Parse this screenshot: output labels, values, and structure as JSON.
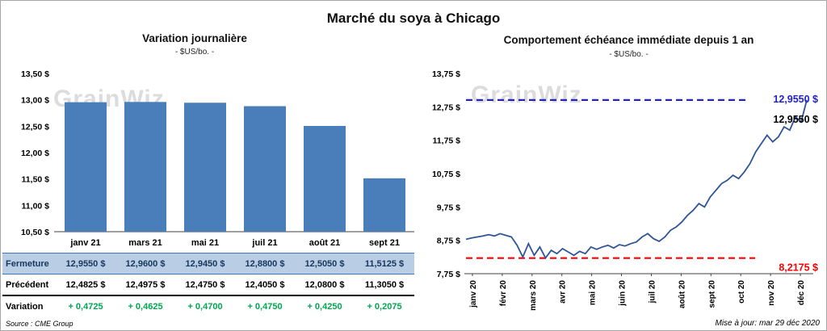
{
  "header": {
    "title": "Marché du soya à Chicago"
  },
  "watermark": "GrainWiz",
  "left_panel": {
    "title": "Variation journalière",
    "subtitle": "- $US/bo. -",
    "source": "Source : CME Group",
    "table": {
      "rows": [
        {
          "label": "Fermeture",
          "values": [
            "12,9550 $",
            "12,9600 $",
            "12,9450 $",
            "12,8800 $",
            "12,5050 $",
            "11,5125 $"
          ]
        },
        {
          "label": "Précédent",
          "values": [
            "12,4825 $",
            "12,4975 $",
            "12,4750 $",
            "12,4050 $",
            "12,0800 $",
            "11,3050 $"
          ]
        },
        {
          "label": "Variation",
          "values": [
            "+ 0,4725",
            "+ 0,4625",
            "+ 0,4700",
            "+ 0,4750",
            "+ 0,4250",
            "+ 0,2075"
          ]
        }
      ]
    }
  },
  "right_panel": {
    "title": "Comportement échéance immédiate depuis 1 an",
    "subtitle": "- $US/bo. -",
    "updated": "Mise à jour: mar 29 déc 2020"
  },
  "chart_data": [
    {
      "type": "bar",
      "title": "Variation journalière",
      "subtitle": "- $US/bo. -",
      "categories": [
        "janv 21",
        "mars 21",
        "mai 21",
        "juil 21",
        "août 21",
        "sept 21"
      ],
      "values": [
        12.955,
        12.96,
        12.945,
        12.88,
        12.505,
        11.5125
      ],
      "value_labels": [
        "12,9550 $",
        "12,9600 $",
        "12,9450 $",
        "12,8800 $",
        "12,5050 $",
        "11,5125 $"
      ],
      "ylim": [
        10.5,
        13.5
      ],
      "yticks": [
        {
          "v": 13.5,
          "label": "13,50 $"
        },
        {
          "v": 13.0,
          "label": "13,00 $"
        },
        {
          "v": 12.5,
          "label": "12,50 $"
        },
        {
          "v": 12.0,
          "label": "12,00 $"
        },
        {
          "v": 11.5,
          "label": "11,50 $"
        },
        {
          "v": 11.0,
          "label": "11,00 $"
        },
        {
          "v": 10.5,
          "label": "10,50 $"
        }
      ],
      "bar_color": "#4A7EBB",
      "grid": false,
      "legend": false
    },
    {
      "type": "line",
      "title": "Comportement échéance immédiate depuis 1 an",
      "subtitle": "- $US/bo. -",
      "x_labels": [
        "janv 20",
        "févr 20",
        "mars 20",
        "avr 20",
        "mai 20",
        "juin 20",
        "juil 20",
        "août 20",
        "sept 20",
        "oct 20",
        "nov 20",
        "déc 20"
      ],
      "ylim": [
        7.75,
        13.75
      ],
      "yticks": [
        {
          "v": 13.75,
          "label": "13,75 $"
        },
        {
          "v": 12.75,
          "label": "12,75 $"
        },
        {
          "v": 11.75,
          "label": "11,75 $"
        },
        {
          "v": 10.75,
          "label": "10,75 $"
        },
        {
          "v": 9.75,
          "label": "9,75 $"
        },
        {
          "v": 8.75,
          "label": "8,75 $"
        },
        {
          "v": 7.75,
          "label": "7,75 $"
        }
      ],
      "line_color": "#2F5597",
      "values": [
        8.78,
        8.82,
        8.85,
        8.88,
        8.92,
        8.88,
        8.95,
        8.9,
        8.85,
        8.6,
        8.25,
        8.65,
        8.3,
        8.55,
        8.22,
        8.45,
        8.35,
        8.5,
        8.4,
        8.3,
        8.42,
        8.35,
        8.55,
        8.48,
        8.55,
        8.6,
        8.52,
        8.62,
        8.58,
        8.65,
        8.7,
        8.85,
        8.95,
        8.8,
        8.72,
        8.85,
        9.05,
        9.15,
        9.3,
        9.5,
        9.65,
        9.85,
        9.75,
        10.05,
        10.25,
        10.45,
        10.55,
        10.7,
        10.6,
        10.8,
        11.05,
        11.4,
        11.65,
        11.9,
        11.7,
        11.85,
        12.15,
        12.05,
        12.45,
        12.3,
        12.955
      ],
      "high_line": {
        "value": 12.955,
        "label": "12,9550 $",
        "color": "#2222CC"
      },
      "last_point_label": {
        "label": "12,9550 $",
        "color": "#000000"
      },
      "low_line": {
        "value": 8.2175,
        "label": "8,2175 $",
        "color": "#FF0000"
      },
      "grid": false,
      "legend": false
    }
  ]
}
